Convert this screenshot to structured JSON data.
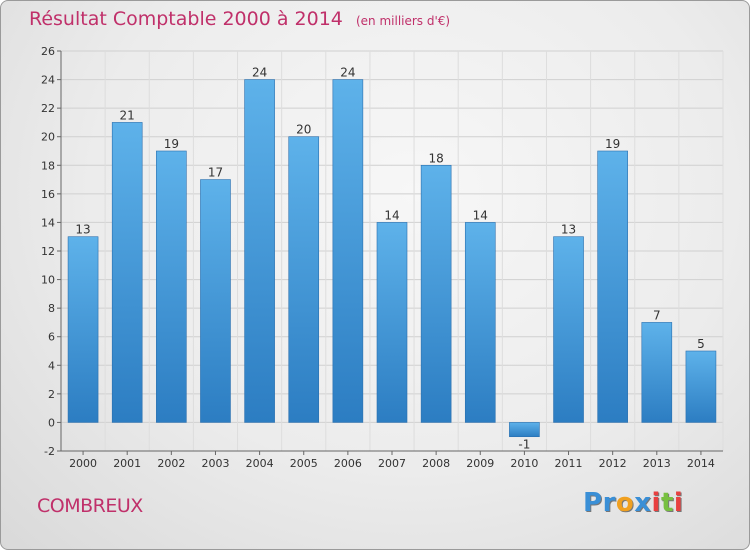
{
  "chart_data": {
    "type": "bar",
    "title": "Résultat Comptable 2000 à 2014",
    "subtitle": "(en milliers d'€)",
    "xlabel": "",
    "ylabel": "",
    "categories": [
      "2000",
      "2001",
      "2002",
      "2003",
      "2004",
      "2005",
      "2006",
      "2007",
      "2008",
      "2009",
      "2010",
      "2011",
      "2012",
      "2013",
      "2014"
    ],
    "values": [
      13,
      21,
      19,
      17,
      24,
      20,
      24,
      14,
      18,
      14,
      -1,
      13,
      19,
      7,
      5
    ],
    "ylim": [
      -2,
      26
    ],
    "yticks": [
      -2,
      0,
      2,
      4,
      6,
      8,
      10,
      12,
      14,
      16,
      18,
      20,
      22,
      24,
      26
    ],
    "grid": true,
    "legend": "none",
    "colors": {
      "bar_top": "#5eb2ea",
      "bar_bottom": "#2c7dc2",
      "title": "#c0306a"
    }
  },
  "place_name": "COMBREUX",
  "brand": {
    "letters": [
      "P",
      "r",
      "o",
      "x",
      "i",
      "t",
      "i"
    ],
    "letter_colors": [
      "#3a8fd6",
      "#3a8fd6",
      "#f0a020",
      "#3a8fd6",
      "#e84040",
      "#78c040",
      "#e84040"
    ]
  }
}
